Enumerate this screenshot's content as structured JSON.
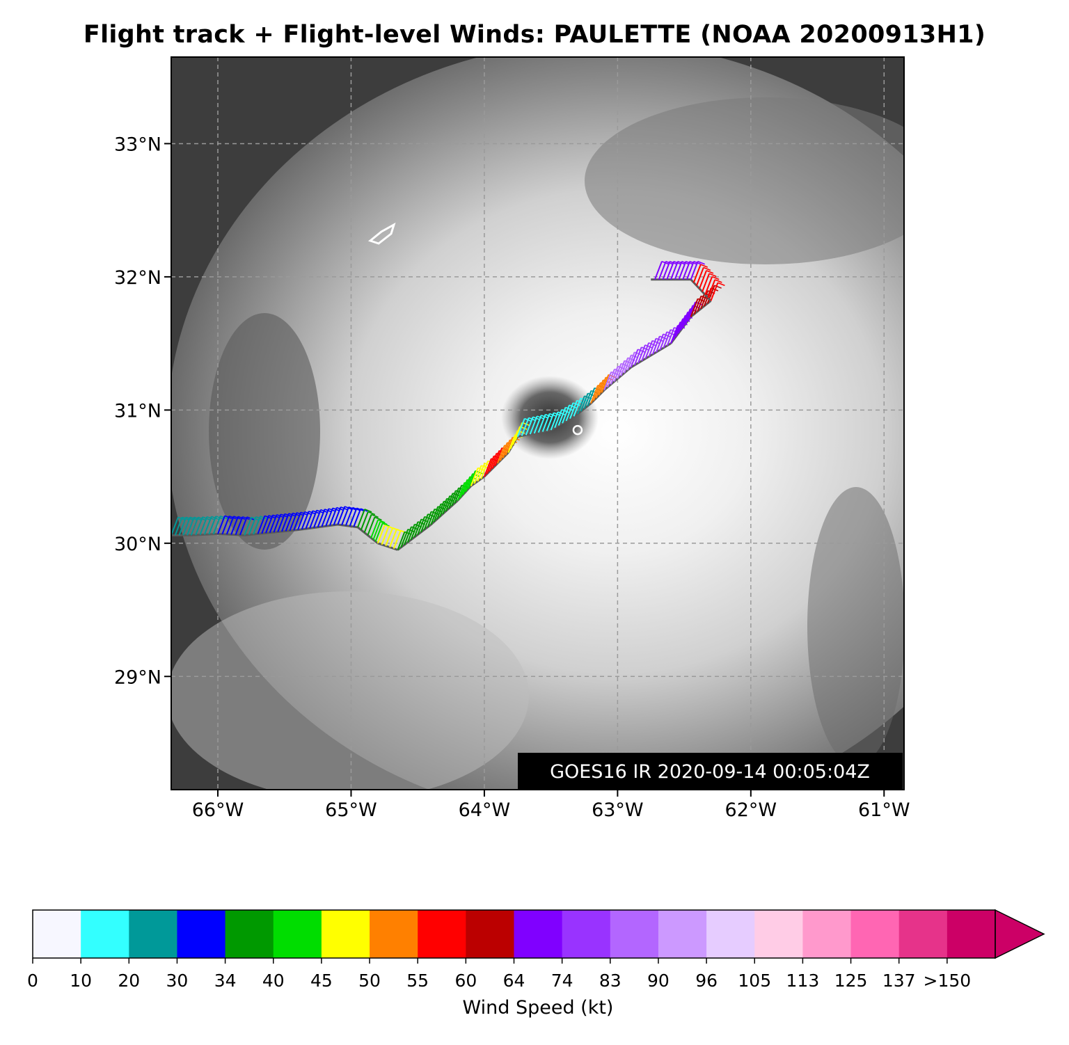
{
  "title": "Flight track + Flight-level Winds: PAULETTE (NOAA 20200913H1)",
  "timestamp": "GOES16 IR 2020-09-14 00:05:04Z",
  "map": {
    "lon_range": [
      -66.35,
      -60.85
    ],
    "lat_range": [
      28.15,
      33.65
    ],
    "lat_ticks": [
      {
        "value": 33,
        "label": "33°N"
      },
      {
        "value": 32,
        "label": "32°N"
      },
      {
        "value": 31,
        "label": "31°N"
      },
      {
        "value": 30,
        "label": "30°N"
      },
      {
        "value": 29,
        "label": "29°N"
      }
    ],
    "lon_ticks": [
      {
        "value": -66,
        "label": "66°W"
      },
      {
        "value": -65,
        "label": "65°W"
      },
      {
        "value": -64,
        "label": "64°W"
      },
      {
        "value": -63,
        "label": "63°W"
      },
      {
        "value": -62,
        "label": "62°W"
      },
      {
        "value": -61,
        "label": "61°W"
      }
    ],
    "storm_center": {
      "lon": -63.3,
      "lat": 30.85
    },
    "grid": "dashed"
  },
  "flight_track": [
    {
      "lon": -66.35,
      "lat": 30.06,
      "wind_bin": 2
    },
    {
      "lon": -66.2,
      "lat": 30.06,
      "wind_bin": 2
    },
    {
      "lon": -66.0,
      "lat": 30.07,
      "wind_bin": 3
    },
    {
      "lon": -65.8,
      "lat": 30.06,
      "wind_bin": 2
    },
    {
      "lon": -65.7,
      "lat": 30.07,
      "wind_bin": 3
    },
    {
      "lon": -65.4,
      "lat": 30.1,
      "wind_bin": 3
    },
    {
      "lon": -65.1,
      "lat": 30.14,
      "wind_bin": 3
    },
    {
      "lon": -64.95,
      "lat": 30.12,
      "wind_bin": 4
    },
    {
      "lon": -64.85,
      "lat": 30.04,
      "wind_bin": 5
    },
    {
      "lon": -64.8,
      "lat": 30.0,
      "wind_bin": 6
    },
    {
      "lon": -64.65,
      "lat": 29.95,
      "wind_bin": 4
    },
    {
      "lon": -64.4,
      "lat": 30.14,
      "wind_bin": 4
    },
    {
      "lon": -64.2,
      "lat": 30.32,
      "wind_bin": 5
    },
    {
      "lon": -64.1,
      "lat": 30.43,
      "wind_bin": 6
    },
    {
      "lon": -64.0,
      "lat": 30.5,
      "wind_bin": 8
    },
    {
      "lon": -63.9,
      "lat": 30.6,
      "wind_bin": 7
    },
    {
      "lon": -63.82,
      "lat": 30.68,
      "wind_bin": 6
    },
    {
      "lon": -63.75,
      "lat": 30.8,
      "wind_bin": 1
    },
    {
      "lon": -63.5,
      "lat": 30.85,
      "wind_bin": 1
    },
    {
      "lon": -63.3,
      "lat": 30.97,
      "wind_bin": 2
    },
    {
      "lon": -63.2,
      "lat": 31.05,
      "wind_bin": 7
    },
    {
      "lon": -63.1,
      "lat": 31.15,
      "wind_bin": 12
    },
    {
      "lon": -62.9,
      "lat": 31.32,
      "wind_bin": 11
    },
    {
      "lon": -62.6,
      "lat": 31.5,
      "wind_bin": 10
    },
    {
      "lon": -62.45,
      "lat": 31.7,
      "wind_bin": 9
    },
    {
      "lon": -62.3,
      "lat": 31.82,
      "wind_bin": 8
    },
    {
      "lon": -62.45,
      "lat": 31.98,
      "wind_bin": 10
    },
    {
      "lon": -62.75,
      "lat": 31.98,
      "wind_bin": 10
    }
  ],
  "colorbar": {
    "label": "Wind Speed (kt)",
    "ticks": [
      "0",
      "10",
      "20",
      "30",
      "34",
      "40",
      "45",
      "50",
      "55",
      "60",
      "64",
      "74",
      "83",
      "90",
      "96",
      "105",
      "113",
      "125",
      "137",
      ">150"
    ],
    "colors": [
      "#f7f7ff",
      "#33ffff",
      "#009999",
      "#0000ff",
      "#009900",
      "#00dd00",
      "#ffff00",
      "#ff8000",
      "#ff0000",
      "#bb0000",
      "#8000ff",
      "#9933ff",
      "#b366ff",
      "#cc99ff",
      "#e6ccff",
      "#ffcce6",
      "#ff99cc",
      "#ff66b3",
      "#e6338a",
      "#cc0066"
    ],
    "extend_color": "#cc0066"
  }
}
